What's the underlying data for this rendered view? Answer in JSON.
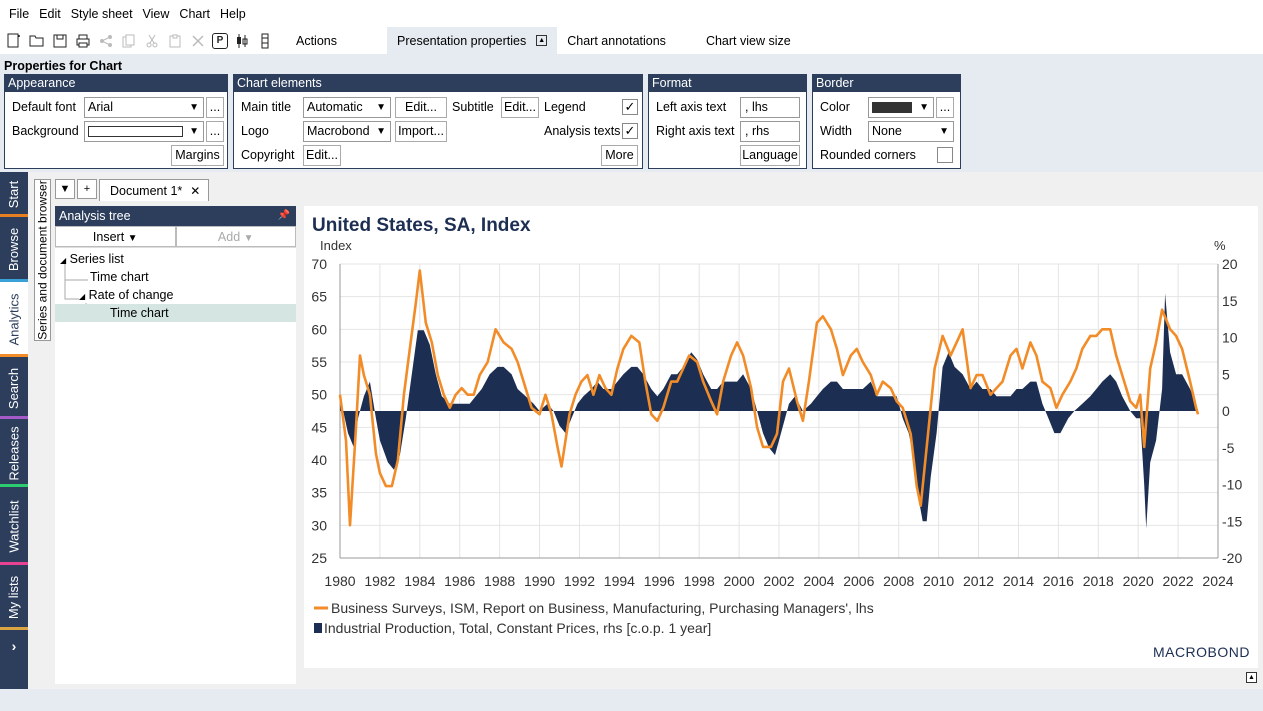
{
  "menu": [
    "File",
    "Edit",
    "Style sheet",
    "View",
    "Chart",
    "Help"
  ],
  "toolbar": {
    "tabs": [
      "Actions",
      "Presentation properties",
      "Chart annotations",
      "Chart view size"
    ],
    "p_badge": "P"
  },
  "properties": {
    "title": "Properties for Chart",
    "appearance": {
      "header": "Appearance",
      "default_font_label": "Default font",
      "default_font_value": "Arial",
      "background_label": "Background",
      "ellipsis": "...",
      "margins_label": "Margins"
    },
    "chart_elements": {
      "header": "Chart elements",
      "main_title_label": "Main title",
      "main_title_value": "Automatic",
      "edit_label": "Edit...",
      "subtitle_label": "Subtitle",
      "legend_label": "Legend",
      "logo_label": "Logo",
      "logo_value": "Macrobond",
      "import_label": "Import...",
      "analysis_texts_label": "Analysis texts",
      "copyright_label": "Copyright",
      "more_label": "More",
      "checkmark": "✓"
    },
    "format": {
      "header": "Format",
      "left_axis_label": "Left axis text",
      "left_axis_value": ", lhs",
      "right_axis_label": "Right axis text",
      "right_axis_value": ", rhs",
      "language_label": "Language"
    },
    "border": {
      "header": "Border",
      "color_label": "Color",
      "width_label": "Width",
      "width_value": "None",
      "rounded_label": "Rounded corners"
    }
  },
  "sidetabs": [
    "Start",
    "Browse",
    "Analytics",
    "Search",
    "Releases",
    "Watchlist",
    "My lists"
  ],
  "doc_browser_label": "Series and document browser",
  "document_tab": "Document 1*",
  "tree": {
    "header": "Analysis tree",
    "insert_label": "Insert",
    "add_label": "Add",
    "nodes": [
      "Series list",
      "Time chart",
      "Rate of change",
      "Time chart"
    ]
  },
  "chart_data": {
    "type": "line",
    "title": "United States, SA, Index",
    "ylabel_left": "Index",
    "ylabel_right": "%",
    "ylim_left": [
      25,
      70
    ],
    "ylim_right": [
      -20,
      20
    ],
    "yticks_left": [
      25,
      30,
      35,
      40,
      45,
      50,
      55,
      60,
      65,
      70
    ],
    "yticks_right": [
      -20,
      -15,
      -10,
      -5,
      0,
      5,
      10,
      15,
      20
    ],
    "xlim": [
      1980,
      2024
    ],
    "xticks": [
      1980,
      1982,
      1984,
      1986,
      1988,
      1990,
      1992,
      1994,
      1996,
      1998,
      2000,
      2002,
      2004,
      2006,
      2008,
      2010,
      2012,
      2014,
      2016,
      2018,
      2020,
      2022,
      2024
    ],
    "grid": true,
    "legend_position": "bottom",
    "logo": "MACROBOND",
    "series": [
      {
        "name": "Business Surveys, ISM, Report on Business, Manufacturing, Purchasing Managers', lhs",
        "type": "line",
        "axis": "left",
        "color": "#f28c28",
        "points": [
          [
            1980.0,
            50
          ],
          [
            1980.3,
            43
          ],
          [
            1980.5,
            30
          ],
          [
            1980.8,
            45
          ],
          [
            1981.0,
            56
          ],
          [
            1981.2,
            53
          ],
          [
            1981.5,
            50
          ],
          [
            1981.8,
            41
          ],
          [
            1982.0,
            38
          ],
          [
            1982.3,
            36
          ],
          [
            1982.6,
            36
          ],
          [
            1982.9,
            40
          ],
          [
            1983.2,
            50
          ],
          [
            1983.5,
            57
          ],
          [
            1983.8,
            64
          ],
          [
            1984.0,
            69
          ],
          [
            1984.3,
            61
          ],
          [
            1984.6,
            58
          ],
          [
            1984.9,
            53
          ],
          [
            1985.2,
            50
          ],
          [
            1985.5,
            48
          ],
          [
            1985.8,
            50
          ],
          [
            1986.1,
            51
          ],
          [
            1986.4,
            50
          ],
          [
            1986.7,
            50
          ],
          [
            1987.0,
            53
          ],
          [
            1987.4,
            55
          ],
          [
            1987.8,
            60
          ],
          [
            1988.2,
            58
          ],
          [
            1988.6,
            57
          ],
          [
            1988.9,
            55
          ],
          [
            1989.2,
            52
          ],
          [
            1989.6,
            48
          ],
          [
            1990.0,
            47
          ],
          [
            1990.3,
            50
          ],
          [
            1990.6,
            47
          ],
          [
            1990.9,
            42
          ],
          [
            1991.1,
            39
          ],
          [
            1991.5,
            47
          ],
          [
            1991.8,
            50
          ],
          [
            1992.1,
            52
          ],
          [
            1992.4,
            53
          ],
          [
            1992.7,
            50
          ],
          [
            1993.0,
            53
          ],
          [
            1993.3,
            51
          ],
          [
            1993.6,
            50
          ],
          [
            1993.9,
            54
          ],
          [
            1994.2,
            57
          ],
          [
            1994.6,
            59
          ],
          [
            1995.0,
            58
          ],
          [
            1995.3,
            52
          ],
          [
            1995.6,
            47
          ],
          [
            1995.9,
            46
          ],
          [
            1996.2,
            48
          ],
          [
            1996.6,
            52
          ],
          [
            1996.9,
            52
          ],
          [
            1997.2,
            54
          ],
          [
            1997.5,
            56
          ],
          [
            1997.9,
            55
          ],
          [
            1998.2,
            52
          ],
          [
            1998.6,
            49
          ],
          [
            1998.9,
            47
          ],
          [
            1999.2,
            52
          ],
          [
            1999.6,
            56
          ],
          [
            1999.9,
            58
          ],
          [
            2000.2,
            56
          ],
          [
            2000.6,
            51
          ],
          [
            2000.9,
            45
          ],
          [
            2001.2,
            42
          ],
          [
            2001.6,
            42
          ],
          [
            2001.9,
            44
          ],
          [
            2002.2,
            52
          ],
          [
            2002.5,
            54
          ],
          [
            2002.9,
            49
          ],
          [
            2003.2,
            46
          ],
          [
            2003.5,
            52
          ],
          [
            2003.9,
            61
          ],
          [
            2004.2,
            62
          ],
          [
            2004.6,
            60
          ],
          [
            2004.9,
            57
          ],
          [
            2005.2,
            53
          ],
          [
            2005.6,
            56
          ],
          [
            2005.9,
            57
          ],
          [
            2006.2,
            55
          ],
          [
            2006.6,
            53
          ],
          [
            2006.9,
            50
          ],
          [
            2007.2,
            52
          ],
          [
            2007.6,
            51
          ],
          [
            2007.9,
            49
          ],
          [
            2008.2,
            48
          ],
          [
            2008.6,
            44
          ],
          [
            2008.9,
            36
          ],
          [
            2009.1,
            33
          ],
          [
            2009.5,
            45
          ],
          [
            2009.8,
            54
          ],
          [
            2010.2,
            59
          ],
          [
            2010.6,
            56
          ],
          [
            2010.9,
            58
          ],
          [
            2011.2,
            60
          ],
          [
            2011.6,
            51
          ],
          [
            2011.9,
            53
          ],
          [
            2012.2,
            53
          ],
          [
            2012.6,
            50
          ],
          [
            2012.9,
            51
          ],
          [
            2013.2,
            52
          ],
          [
            2013.6,
            56
          ],
          [
            2013.9,
            57
          ],
          [
            2014.2,
            54
          ],
          [
            2014.6,
            58
          ],
          [
            2014.9,
            56
          ],
          [
            2015.2,
            52
          ],
          [
            2015.6,
            51
          ],
          [
            2015.9,
            48
          ],
          [
            2016.2,
            50
          ],
          [
            2016.6,
            52
          ],
          [
            2016.9,
            54
          ],
          [
            2017.2,
            57
          ],
          [
            2017.6,
            59
          ],
          [
            2017.9,
            59
          ],
          [
            2018.2,
            60
          ],
          [
            2018.6,
            60
          ],
          [
            2018.9,
            56
          ],
          [
            2019.2,
            53
          ],
          [
            2019.6,
            49
          ],
          [
            2019.9,
            48
          ],
          [
            2020.1,
            50
          ],
          [
            2020.3,
            42
          ],
          [
            2020.6,
            54
          ],
          [
            2020.9,
            58
          ],
          [
            2021.2,
            63
          ],
          [
            2021.6,
            60
          ],
          [
            2021.9,
            59
          ],
          [
            2022.2,
            57
          ],
          [
            2022.6,
            52
          ],
          [
            2022.9,
            48
          ],
          [
            2023.0,
            47
          ]
        ]
      },
      {
        "name": "Industrial Production, Total, Constant Prices, rhs [c.o.p. 1 year]",
        "type": "area",
        "axis": "right",
        "color": "#1c2e52",
        "points": [
          [
            1980.0,
            2
          ],
          [
            1980.4,
            -3
          ],
          [
            1980.7,
            -5
          ],
          [
            1980.9,
            -1
          ],
          [
            1981.2,
            2
          ],
          [
            1981.5,
            4
          ],
          [
            1981.8,
            -1
          ],
          [
            1982.0,
            -4
          ],
          [
            1982.4,
            -7
          ],
          [
            1982.7,
            -8
          ],
          [
            1983.0,
            -6
          ],
          [
            1983.3,
            -1
          ],
          [
            1983.6,
            5
          ],
          [
            1983.9,
            11
          ],
          [
            1984.2,
            11
          ],
          [
            1984.5,
            9
          ],
          [
            1984.8,
            5
          ],
          [
            1985.1,
            2
          ],
          [
            1985.5,
            1
          ],
          [
            1985.8,
            1
          ],
          [
            1986.1,
            1
          ],
          [
            1986.5,
            1
          ],
          [
            1986.8,
            2
          ],
          [
            1987.1,
            3
          ],
          [
            1987.5,
            5
          ],
          [
            1987.9,
            6
          ],
          [
            1988.2,
            6
          ],
          [
            1988.6,
            5
          ],
          [
            1988.9,
            3
          ],
          [
            1989.3,
            2
          ],
          [
            1989.7,
            1
          ],
          [
            1990.0,
            0
          ],
          [
            1990.4,
            1
          ],
          [
            1990.7,
            0
          ],
          [
            1991.0,
            -2
          ],
          [
            1991.3,
            -3
          ],
          [
            1991.6,
            -1
          ],
          [
            1991.9,
            1
          ],
          [
            1992.2,
            2
          ],
          [
            1992.6,
            3
          ],
          [
            1992.9,
            4
          ],
          [
            1993.2,
            3
          ],
          [
            1993.6,
            3
          ],
          [
            1993.9,
            4
          ],
          [
            1994.2,
            5
          ],
          [
            1994.6,
            6
          ],
          [
            1994.9,
            6
          ],
          [
            1995.2,
            5
          ],
          [
            1995.6,
            3
          ],
          [
            1995.9,
            2
          ],
          [
            1996.2,
            3
          ],
          [
            1996.6,
            5
          ],
          [
            1996.9,
            5
          ],
          [
            1997.2,
            6
          ],
          [
            1997.6,
            8
          ],
          [
            1997.9,
            7
          ],
          [
            1998.2,
            5
          ],
          [
            1998.6,
            3
          ],
          [
            1998.9,
            3
          ],
          [
            1999.2,
            4
          ],
          [
            1999.6,
            4
          ],
          [
            1999.9,
            4
          ],
          [
            2000.2,
            5
          ],
          [
            2000.6,
            3
          ],
          [
            2000.9,
            0
          ],
          [
            2001.2,
            -3
          ],
          [
            2001.5,
            -5
          ],
          [
            2001.8,
            -6
          ],
          [
            2002.1,
            -3
          ],
          [
            2002.5,
            1
          ],
          [
            2002.8,
            2
          ],
          [
            2003.2,
            0
          ],
          [
            2003.6,
            1
          ],
          [
            2003.9,
            2
          ],
          [
            2004.2,
            3
          ],
          [
            2004.6,
            4
          ],
          [
            2004.9,
            4
          ],
          [
            2005.2,
            3
          ],
          [
            2005.6,
            3
          ],
          [
            2005.9,
            3
          ],
          [
            2006.2,
            3
          ],
          [
            2006.6,
            4
          ],
          [
            2006.9,
            2
          ],
          [
            2007.2,
            2
          ],
          [
            2007.6,
            2
          ],
          [
            2007.9,
            2
          ],
          [
            2008.2,
            -1
          ],
          [
            2008.5,
            -3
          ],
          [
            2008.8,
            -7
          ],
          [
            2009.0,
            -12
          ],
          [
            2009.2,
            -15
          ],
          [
            2009.4,
            -15
          ],
          [
            2009.6,
            -9
          ],
          [
            2009.9,
            -3
          ],
          [
            2010.2,
            6
          ],
          [
            2010.5,
            8
          ],
          [
            2010.8,
            6
          ],
          [
            2011.2,
            5
          ],
          [
            2011.6,
            3
          ],
          [
            2011.9,
            4
          ],
          [
            2012.2,
            3
          ],
          [
            2012.6,
            3
          ],
          [
            2012.9,
            2
          ],
          [
            2013.2,
            2
          ],
          [
            2013.6,
            2
          ],
          [
            2013.9,
            3
          ],
          [
            2014.2,
            3
          ],
          [
            2014.6,
            4
          ],
          [
            2014.9,
            4
          ],
          [
            2015.2,
            1
          ],
          [
            2015.5,
            -1
          ],
          [
            2015.8,
            -3
          ],
          [
            2016.1,
            -3
          ],
          [
            2016.5,
            -1
          ],
          [
            2016.8,
            0
          ],
          [
            2017.2,
            1
          ],
          [
            2017.6,
            2
          ],
          [
            2017.9,
            3
          ],
          [
            2018.2,
            4
          ],
          [
            2018.6,
            5
          ],
          [
            2018.9,
            4
          ],
          [
            2019.2,
            2
          ],
          [
            2019.6,
            0
          ],
          [
            2019.9,
            -1
          ],
          [
            2020.1,
            -1
          ],
          [
            2020.3,
            -10
          ],
          [
            2020.4,
            -16
          ],
          [
            2020.6,
            -7
          ],
          [
            2020.9,
            -4
          ],
          [
            2021.2,
            3
          ],
          [
            2021.35,
            16
          ],
          [
            2021.6,
            8
          ],
          [
            2021.9,
            5
          ],
          [
            2022.2,
            5
          ],
          [
            2022.6,
            3
          ],
          [
            2022.9,
            1
          ],
          [
            2023.0,
            0
          ]
        ]
      }
    ]
  }
}
